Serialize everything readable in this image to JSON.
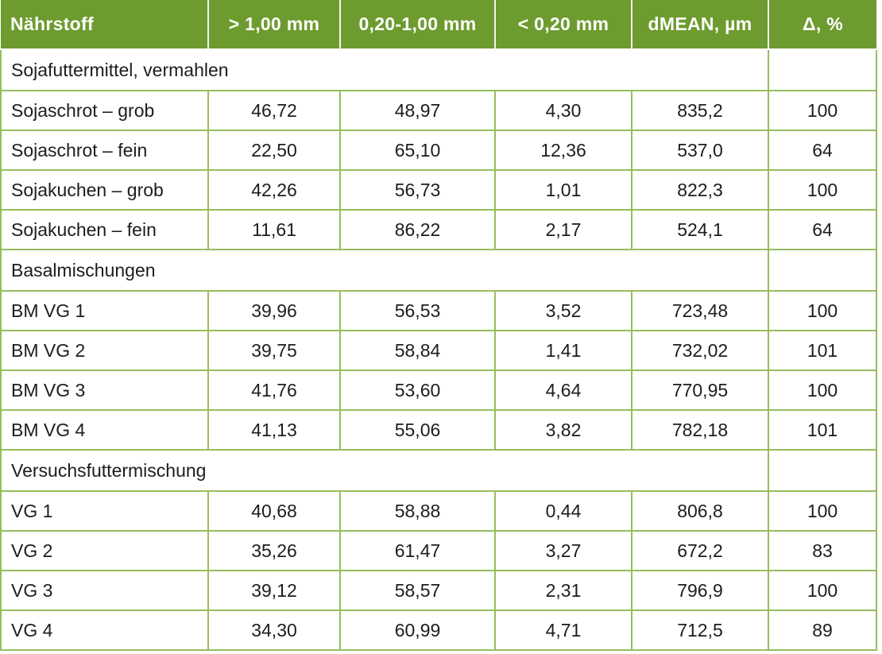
{
  "colors": {
    "header_bg": "#6d9b2f",
    "grid_border": "#97be5d",
    "header_text": "#ffffff",
    "body_text": "#1d1d1b"
  },
  "table": {
    "columns": [
      "Nährstoff",
      "> 1,00 mm",
      "0,20-1,00 mm",
      "< 0,20 mm",
      "dMEAN, µm",
      "Δ, %"
    ],
    "sections": [
      {
        "title": "Sojafuttermittel, vermahlen",
        "rows": [
          {
            "label": "Sojaschrot – grob",
            "values": [
              "46,72",
              "48,97",
              "4,30",
              "835,2",
              "100"
            ]
          },
          {
            "label": "Sojaschrot – fein",
            "values": [
              "22,50",
              "65,10",
              "12,36",
              "537,0",
              "64"
            ]
          },
          {
            "label": "Sojakuchen – grob",
            "values": [
              "42,26",
              "56,73",
              "1,01",
              "822,3",
              "100"
            ]
          },
          {
            "label": "Sojakuchen – fein",
            "values": [
              "11,61",
              "86,22",
              "2,17",
              "524,1",
              "64"
            ]
          }
        ]
      },
      {
        "title": "Basalmischungen",
        "rows": [
          {
            "label": "BM VG 1",
            "values": [
              "39,96",
              "56,53",
              "3,52",
              "723,48",
              "100"
            ]
          },
          {
            "label": "BM VG 2",
            "values": [
              "39,75",
              "58,84",
              "1,41",
              "732,02",
              "101"
            ]
          },
          {
            "label": "BM VG 3",
            "values": [
              "41,76",
              "53,60",
              "4,64",
              "770,95",
              "100"
            ]
          },
          {
            "label": "BM VG 4",
            "values": [
              "41,13",
              "55,06",
              "3,82",
              "782,18",
              "101"
            ]
          }
        ]
      },
      {
        "title": "Versuchsfuttermischung",
        "rows": [
          {
            "label": "VG 1",
            "values": [
              "40,68",
              "58,88",
              "0,44",
              "806,8",
              "100"
            ]
          },
          {
            "label": "VG 2",
            "values": [
              "35,26",
              "61,47",
              "3,27",
              "672,2",
              "83"
            ]
          },
          {
            "label": "VG 3",
            "values": [
              "39,12",
              "58,57",
              "2,31",
              "796,9",
              "100"
            ]
          },
          {
            "label": "VG 4",
            "values": [
              "34,30",
              "60,99",
              "4,71",
              "712,5",
              "89"
            ]
          }
        ]
      }
    ]
  }
}
